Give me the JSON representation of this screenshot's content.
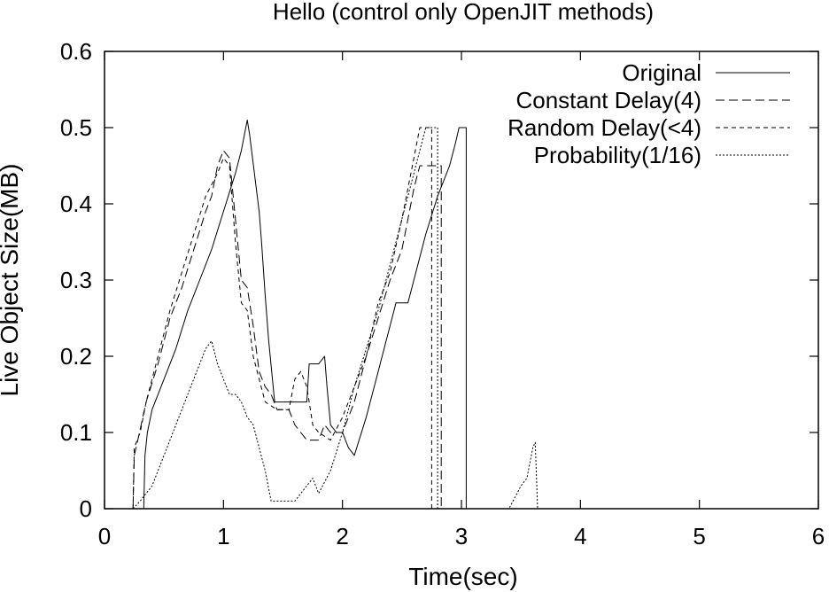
{
  "chart_data": {
    "type": "line",
    "title": "Hello (control only OpenJIT methods)",
    "xlabel": "Time(sec)",
    "ylabel": "Live Object Size(MB)",
    "xlim": [
      0,
      6
    ],
    "ylim": [
      0,
      0.6
    ],
    "xticks": [
      "0",
      "1",
      "2",
      "3",
      "4",
      "5",
      "6"
    ],
    "yticks": [
      "0",
      "0.1",
      "0.2",
      "0.3",
      "0.4",
      "0.5",
      "0.6"
    ],
    "grid": false,
    "legend_position": "top-right",
    "series": [
      {
        "name": "Original",
        "dash": "none",
        "points": [
          [
            0.26,
            0
          ],
          [
            0.33,
            0
          ],
          [
            0.34,
            0.07
          ],
          [
            0.36,
            0.1
          ],
          [
            0.4,
            0.13
          ],
          [
            0.5,
            0.17
          ],
          [
            0.6,
            0.21
          ],
          [
            0.7,
            0.26
          ],
          [
            0.8,
            0.3
          ],
          [
            0.9,
            0.34
          ],
          [
            1.0,
            0.39
          ],
          [
            1.06,
            0.42
          ],
          [
            1.1,
            0.44
          ],
          [
            1.15,
            0.47
          ],
          [
            1.2,
            0.51
          ],
          [
            1.22,
            0.49
          ],
          [
            1.3,
            0.39
          ],
          [
            1.32,
            0.35
          ],
          [
            1.35,
            0.28
          ],
          [
            1.38,
            0.22
          ],
          [
            1.43,
            0.14
          ],
          [
            1.5,
            0.14
          ],
          [
            1.7,
            0.14
          ],
          [
            1.72,
            0.19
          ],
          [
            1.8,
            0.19
          ],
          [
            1.85,
            0.2
          ],
          [
            1.87,
            0.16
          ],
          [
            1.9,
            0.11
          ],
          [
            1.95,
            0.1
          ],
          [
            2.0,
            0.1
          ],
          [
            2.05,
            0.08
          ],
          [
            2.1,
            0.07
          ],
          [
            2.2,
            0.12
          ],
          [
            2.3,
            0.18
          ],
          [
            2.4,
            0.24
          ],
          [
            2.45,
            0.27
          ],
          [
            2.55,
            0.27
          ],
          [
            2.6,
            0.3
          ],
          [
            2.7,
            0.36
          ],
          [
            2.8,
            0.41
          ],
          [
            2.9,
            0.45
          ],
          [
            2.95,
            0.48
          ],
          [
            2.98,
            0.5
          ],
          [
            3.04,
            0.5
          ],
          [
            3.04,
            0
          ],
          [
            6.0,
            0
          ]
        ]
      },
      {
        "name": "Constant Delay(4)",
        "dash": "10,5",
        "points": [
          [
            0.24,
            0
          ],
          [
            0.25,
            0.07
          ],
          [
            0.28,
            0.09
          ],
          [
            0.35,
            0.14
          ],
          [
            0.45,
            0.19
          ],
          [
            0.55,
            0.25
          ],
          [
            0.65,
            0.29
          ],
          [
            0.75,
            0.34
          ],
          [
            0.85,
            0.39
          ],
          [
            0.9,
            0.41
          ],
          [
            0.95,
            0.45
          ],
          [
            1.0,
            0.47
          ],
          [
            1.05,
            0.46
          ],
          [
            1.1,
            0.38
          ],
          [
            1.15,
            0.3
          ],
          [
            1.2,
            0.29
          ],
          [
            1.25,
            0.24
          ],
          [
            1.3,
            0.18
          ],
          [
            1.35,
            0.16
          ],
          [
            1.4,
            0.15
          ],
          [
            1.45,
            0.13
          ],
          [
            1.55,
            0.13
          ],
          [
            1.6,
            0.11
          ],
          [
            1.65,
            0.1
          ],
          [
            1.7,
            0.09
          ],
          [
            1.8,
            0.09
          ],
          [
            1.85,
            0.11
          ],
          [
            1.9,
            0.1
          ],
          [
            2.0,
            0.1
          ],
          [
            2.1,
            0.14
          ],
          [
            2.2,
            0.2
          ],
          [
            2.3,
            0.25
          ],
          [
            2.4,
            0.3
          ],
          [
            2.5,
            0.34
          ],
          [
            2.55,
            0.38
          ],
          [
            2.6,
            0.42
          ],
          [
            2.65,
            0.45
          ],
          [
            2.83,
            0.45
          ],
          [
            2.83,
            0
          ],
          [
            6.0,
            0
          ]
        ]
      },
      {
        "name": "Random Delay(<4)",
        "dash": "5,4",
        "points": [
          [
            0.24,
            0
          ],
          [
            0.25,
            0.08
          ],
          [
            0.3,
            0.1
          ],
          [
            0.35,
            0.14
          ],
          [
            0.45,
            0.2
          ],
          [
            0.55,
            0.26
          ],
          [
            0.65,
            0.31
          ],
          [
            0.75,
            0.36
          ],
          [
            0.85,
            0.41
          ],
          [
            0.95,
            0.44
          ],
          [
            1.0,
            0.46
          ],
          [
            1.05,
            0.45
          ],
          [
            1.1,
            0.35
          ],
          [
            1.15,
            0.27
          ],
          [
            1.2,
            0.26
          ],
          [
            1.25,
            0.2
          ],
          [
            1.3,
            0.17
          ],
          [
            1.35,
            0.14
          ],
          [
            1.45,
            0.13
          ],
          [
            1.55,
            0.13
          ],
          [
            1.6,
            0.17
          ],
          [
            1.65,
            0.18
          ],
          [
            1.7,
            0.16
          ],
          [
            1.75,
            0.11
          ],
          [
            1.8,
            0.1
          ],
          [
            1.9,
            0.09
          ],
          [
            2.0,
            0.12
          ],
          [
            2.1,
            0.16
          ],
          [
            2.2,
            0.2
          ],
          [
            2.3,
            0.27
          ],
          [
            2.4,
            0.31
          ],
          [
            2.5,
            0.38
          ],
          [
            2.6,
            0.46
          ],
          [
            2.65,
            0.5
          ],
          [
            2.75,
            0.5
          ],
          [
            2.75,
            0
          ],
          [
            6.0,
            0
          ]
        ]
      },
      {
        "name": "Probability(1/16)",
        "dash": "2,2",
        "points": [
          [
            0.24,
            0
          ],
          [
            0.3,
            0.01
          ],
          [
            0.4,
            0.03
          ],
          [
            0.5,
            0.07
          ],
          [
            0.6,
            0.11
          ],
          [
            0.7,
            0.15
          ],
          [
            0.8,
            0.19
          ],
          [
            0.85,
            0.21
          ],
          [
            0.9,
            0.22
          ],
          [
            0.95,
            0.19
          ],
          [
            1.0,
            0.17
          ],
          [
            1.05,
            0.15
          ],
          [
            1.1,
            0.15
          ],
          [
            1.15,
            0.14
          ],
          [
            1.2,
            0.12
          ],
          [
            1.25,
            0.11
          ],
          [
            1.3,
            0.08
          ],
          [
            1.35,
            0.05
          ],
          [
            1.4,
            0.01
          ],
          [
            1.45,
            0.01
          ],
          [
            1.6,
            0.01
          ],
          [
            1.65,
            0.02
          ],
          [
            1.7,
            0.03
          ],
          [
            1.75,
            0.04
          ],
          [
            1.8,
            0.02
          ],
          [
            1.9,
            0.05
          ],
          [
            2.0,
            0.1
          ],
          [
            2.1,
            0.16
          ],
          [
            2.2,
            0.21
          ],
          [
            2.3,
            0.26
          ],
          [
            2.4,
            0.32
          ],
          [
            2.5,
            0.38
          ],
          [
            2.6,
            0.44
          ],
          [
            2.7,
            0.5
          ],
          [
            2.8,
            0.5
          ],
          [
            2.8,
            0
          ],
          [
            3.4,
            0
          ],
          [
            3.5,
            0.03
          ],
          [
            3.55,
            0.04
          ],
          [
            3.6,
            0.08
          ],
          [
            3.62,
            0.087
          ],
          [
            3.64,
            0
          ],
          [
            6.0,
            0
          ]
        ]
      }
    ]
  }
}
